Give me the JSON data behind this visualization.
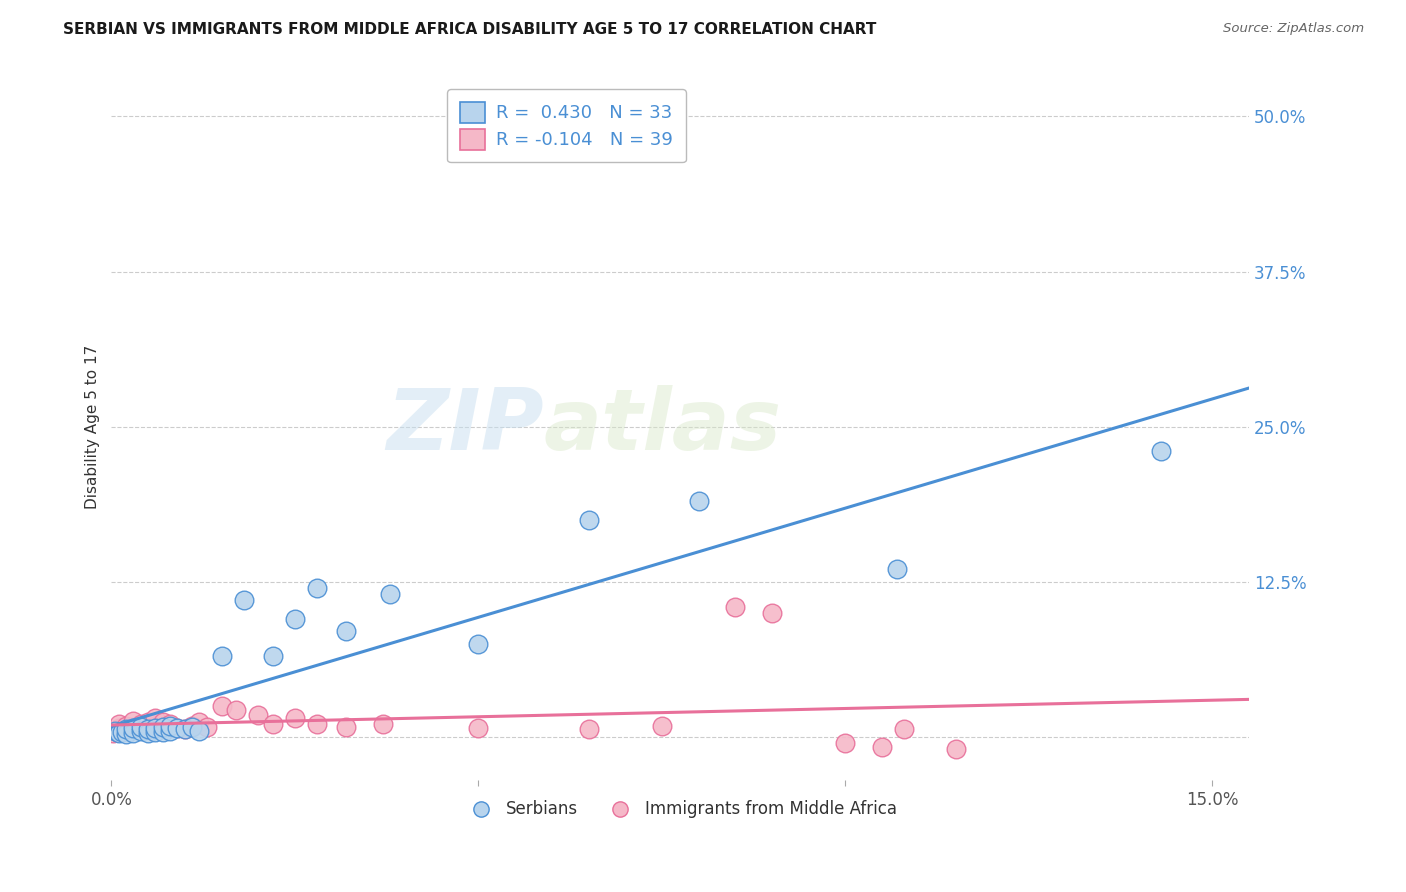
{
  "title": "SERBIAN VS IMMIGRANTS FROM MIDDLE AFRICA DISABILITY AGE 5 TO 17 CORRELATION CHART",
  "source": "Source: ZipAtlas.com",
  "ylabel": "Disability Age 5 to 17",
  "xlim": [
    0.0,
    0.155
  ],
  "ylim": [
    -0.035,
    0.535
  ],
  "xticks": [
    0.0,
    0.05,
    0.1,
    0.15
  ],
  "xtick_labels": [
    "0.0%",
    "",
    "",
    "15.0%"
  ],
  "ytick_labels_right": [
    "50.0%",
    "37.5%",
    "25.0%",
    "12.5%",
    ""
  ],
  "yticks_right": [
    0.5,
    0.375,
    0.25,
    0.125,
    0.0
  ],
  "blue_color": "#b8d4ed",
  "pink_color": "#f5b8c8",
  "blue_line_color": "#4a8fd4",
  "pink_line_color": "#e8709a",
  "legend_blue_R": "0.430",
  "legend_blue_N": "33",
  "legend_pink_R": "-0.104",
  "legend_pink_N": "39",
  "blue_scatter_x": [
    0.0005,
    0.001,
    0.0015,
    0.002,
    0.002,
    0.003,
    0.003,
    0.004,
    0.004,
    0.005,
    0.005,
    0.006,
    0.006,
    0.007,
    0.007,
    0.008,
    0.008,
    0.009,
    0.01,
    0.011,
    0.012,
    0.015,
    0.018,
    0.022,
    0.025,
    0.028,
    0.032,
    0.038,
    0.05,
    0.065,
    0.08,
    0.107,
    0.143
  ],
  "blue_scatter_y": [
    0.005,
    0.003,
    0.004,
    0.002,
    0.006,
    0.003,
    0.007,
    0.005,
    0.008,
    0.003,
    0.006,
    0.004,
    0.007,
    0.004,
    0.008,
    0.005,
    0.009,
    0.007,
    0.006,
    0.008,
    0.005,
    0.065,
    0.11,
    0.065,
    0.095,
    0.12,
    0.085,
    0.115,
    0.075,
    0.175,
    0.19,
    0.135,
    0.23
  ],
  "pink_scatter_x": [
    0.0002,
    0.0005,
    0.001,
    0.001,
    0.002,
    0.002,
    0.003,
    0.003,
    0.004,
    0.004,
    0.005,
    0.005,
    0.006,
    0.006,
    0.007,
    0.007,
    0.008,
    0.009,
    0.01,
    0.011,
    0.012,
    0.013,
    0.015,
    0.017,
    0.02,
    0.022,
    0.025,
    0.028,
    0.032,
    0.037,
    0.05,
    0.065,
    0.075,
    0.085,
    0.09,
    0.1,
    0.105,
    0.108,
    0.115
  ],
  "pink_scatter_y": [
    0.003,
    0.005,
    0.007,
    0.01,
    0.006,
    0.009,
    0.008,
    0.013,
    0.007,
    0.01,
    0.006,
    0.012,
    0.009,
    0.015,
    0.008,
    0.012,
    0.01,
    0.007,
    0.006,
    0.009,
    0.012,
    0.008,
    0.025,
    0.022,
    0.018,
    0.01,
    0.015,
    0.01,
    0.008,
    0.01,
    0.007,
    0.006,
    0.009,
    0.105,
    0.1,
    -0.005,
    -0.008,
    0.006,
    -0.01
  ],
  "watermark_zip": "ZIP",
  "watermark_atlas": "atlas",
  "legend_label_serbian": "Serbians",
  "legend_label_immigrant": "Immigrants from Middle Africa"
}
